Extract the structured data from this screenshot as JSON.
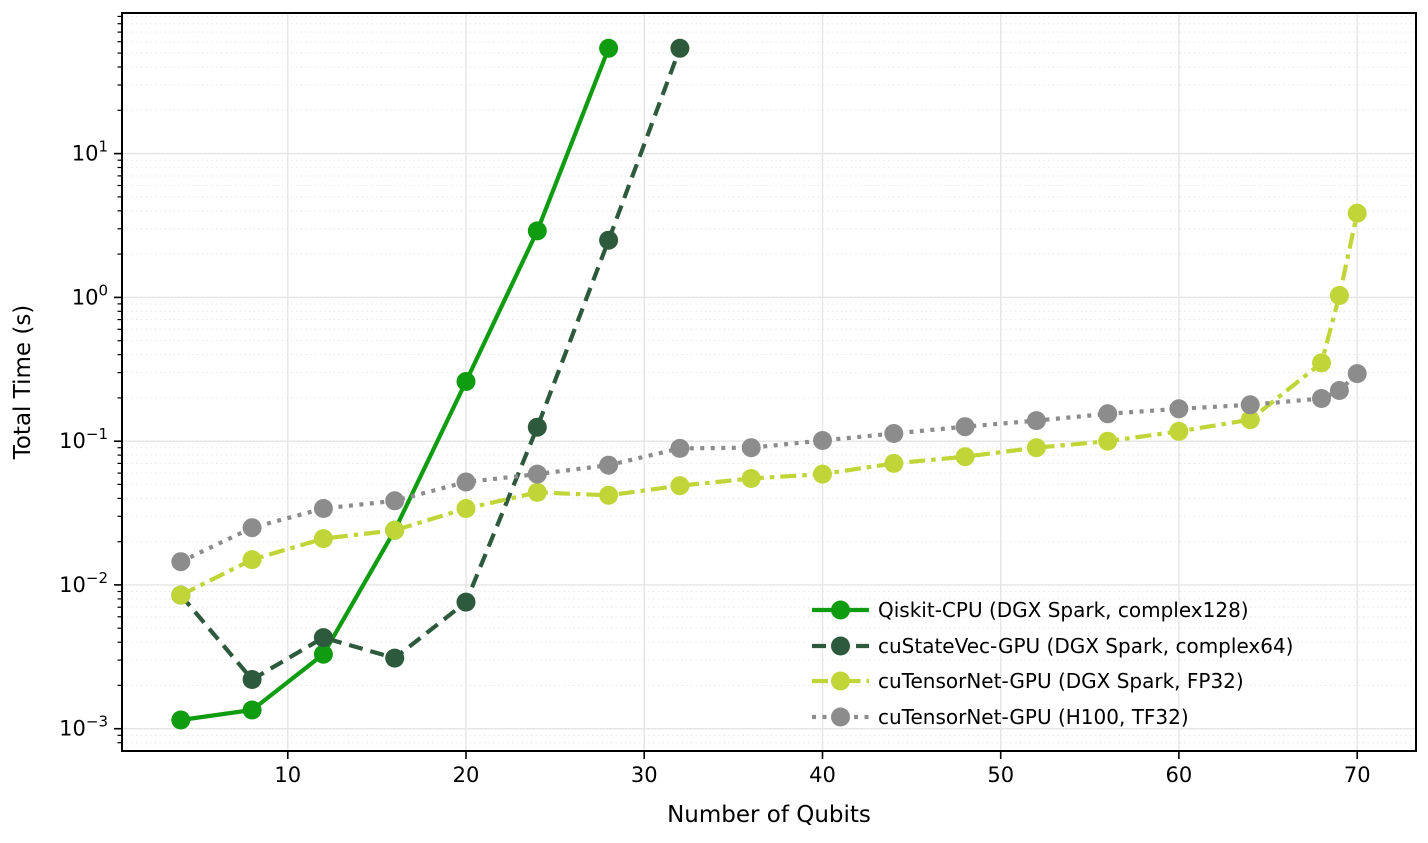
{
  "figure": {
    "background": "#ffffff",
    "text_color": "#000000",
    "spine_color": "#000000",
    "grid_major_color": "#e5e5e5",
    "grid_minor_color": "#e9e9e9"
  },
  "chart_data": {
    "type": "line",
    "title": "",
    "xlabel": "Number of Qubits",
    "ylabel": "Total Time (s)",
    "x_scale": "linear",
    "y_scale": "log",
    "xlim": [
      0.7,
      73.3
    ],
    "ylim": [
      0.0007,
      95
    ],
    "x_ticks": [
      10,
      20,
      30,
      40,
      50,
      60,
      70
    ],
    "y_tick_exponents": [
      -3,
      -2,
      -1,
      0,
      1
    ],
    "grid": {
      "major": "solid",
      "minor": "dotted-horizontal"
    },
    "legend": {
      "position": "lower-right",
      "frame": false
    },
    "series": [
      {
        "name": "Qiskit-CPU (DGX Spark, complex128)",
        "slug": "qiskit-cpu",
        "color": "#109c10",
        "line_style": "solid",
        "marker": "circle",
        "points": [
          [
            4,
            0.00115
          ],
          [
            8,
            0.00135
          ],
          [
            12,
            0.0033
          ],
          [
            16,
            0.024
          ],
          [
            20,
            0.26
          ],
          [
            24,
            2.9
          ],
          [
            28,
            54
          ]
        ]
      },
      {
        "name": "cuStateVec-GPU (DGX Spark, complex64)",
        "slug": "custatevec-gpu",
        "color": "#2d5a3c",
        "line_style": "dashed",
        "marker": "circle",
        "points": [
          [
            4,
            0.0085
          ],
          [
            8,
            0.0022
          ],
          [
            12,
            0.0043
          ],
          [
            16,
            0.0031
          ],
          [
            20,
            0.0076
          ],
          [
            24,
            0.125
          ],
          [
            28,
            2.5
          ],
          [
            32,
            54
          ]
        ]
      },
      {
        "name": "cuTensorNet-GPU (DGX Spark, FP32)",
        "slug": "cutensornet-gpu-dgx",
        "color": "#c0d638",
        "line_style": "dashdot",
        "marker": "circle",
        "points": [
          [
            4,
            0.0085
          ],
          [
            8,
            0.015
          ],
          [
            12,
            0.021
          ],
          [
            16,
            0.024
          ],
          [
            20,
            0.034
          ],
          [
            24,
            0.044
          ],
          [
            28,
            0.042
          ],
          [
            32,
            0.049
          ],
          [
            36,
            0.055
          ],
          [
            40,
            0.059
          ],
          [
            44,
            0.07
          ],
          [
            48,
            0.078
          ],
          [
            52,
            0.09
          ],
          [
            56,
            0.1
          ],
          [
            60,
            0.117
          ],
          [
            64,
            0.141
          ],
          [
            68,
            0.35
          ],
          [
            69,
            1.03
          ],
          [
            70,
            3.85
          ]
        ]
      },
      {
        "name": "cuTensorNet-GPU (H100, TF32)",
        "slug": "cutensornet-gpu-h100",
        "color": "#8c8c8c",
        "line_style": "dotted",
        "marker": "circle",
        "points": [
          [
            4,
            0.0145
          ],
          [
            8,
            0.025
          ],
          [
            12,
            0.034
          ],
          [
            16,
            0.0385
          ],
          [
            20,
            0.052
          ],
          [
            24,
            0.059
          ],
          [
            28,
            0.068
          ],
          [
            32,
            0.089
          ],
          [
            36,
            0.09
          ],
          [
            40,
            0.101
          ],
          [
            44,
            0.113
          ],
          [
            48,
            0.126
          ],
          [
            52,
            0.139
          ],
          [
            56,
            0.155
          ],
          [
            60,
            0.168
          ],
          [
            64,
            0.179
          ],
          [
            68,
            0.198
          ],
          [
            69,
            0.225
          ],
          [
            70,
            0.295
          ]
        ]
      }
    ]
  }
}
